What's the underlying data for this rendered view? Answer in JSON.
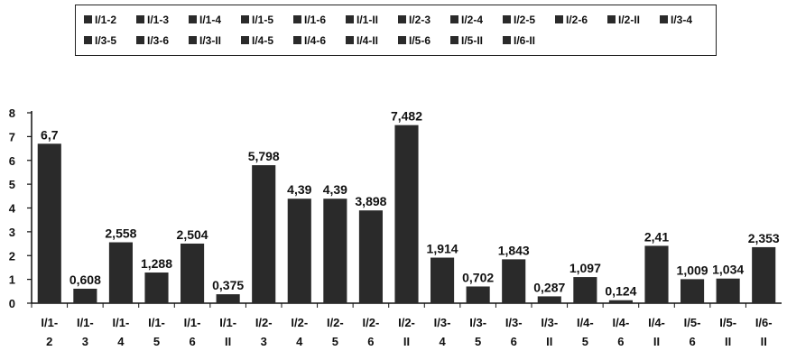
{
  "chart_data": {
    "type": "bar",
    "categories": [
      "I/1-2",
      "I/1-3",
      "I/1-4",
      "I/1-5",
      "I/1-6",
      "I/1-II",
      "I/2-3",
      "I/2-4",
      "I/2-5",
      "I/2-6",
      "I/2-II",
      "I/3-4",
      "I/3-5",
      "I/3-6",
      "I/3-II",
      "I/4-5",
      "I/4-6",
      "I/4-II",
      "I/5-6",
      "I/5-II",
      "I/6-II"
    ],
    "values": [
      6.7,
      0.608,
      2.558,
      1.288,
      2.504,
      0.375,
      5.798,
      4.39,
      4.39,
      3.898,
      7.482,
      1.914,
      0.702,
      1.843,
      0.287,
      1.097,
      0.124,
      2.41,
      1.009,
      1.034,
      2.353
    ],
    "value_labels": [
      "6,7",
      "0,608",
      "2,558",
      "1,288",
      "2,504",
      "0,375",
      "5,798",
      "4,39",
      "4,39",
      "3,898",
      "7,482",
      "1,914",
      "0,702",
      "1,843",
      "0,287",
      "1,097",
      "0,124",
      "2,41",
      "1,009",
      "1,034",
      "2,353"
    ],
    "category_labels": [
      [
        "I/1-",
        "2"
      ],
      [
        "I/1-",
        "3"
      ],
      [
        "I/1-",
        "4"
      ],
      [
        "I/1-",
        "5"
      ],
      [
        "I/1-",
        "6"
      ],
      [
        "I/1-",
        "II"
      ],
      [
        "I/2-",
        "3"
      ],
      [
        "I/2-",
        "4"
      ],
      [
        "I/2-",
        "5"
      ],
      [
        "I/2-",
        "6"
      ],
      [
        "I/2-",
        "II"
      ],
      [
        "I/3-",
        "4"
      ],
      [
        "I/3-",
        "5"
      ],
      [
        "I/3-",
        "6"
      ],
      [
        "I/3-",
        "II"
      ],
      [
        "I/4-",
        "5"
      ],
      [
        "I/4-",
        "6"
      ],
      [
        "I/4-",
        "II"
      ],
      [
        "I/5-",
        "6"
      ],
      [
        "I/5-",
        "II"
      ],
      [
        "I/6-",
        "II"
      ]
    ],
    "legend_entries": [
      "I/1-2",
      "I/1-3",
      "I/1-4",
      "I/1-5",
      "I/1-6",
      "I/1-II",
      "I/2-3",
      "I/2-4",
      "I/2-5",
      "I/2-6",
      "I/2-II",
      "I/3-4",
      "I/3-5",
      "I/3-6",
      "I/3-II",
      "I/4-5",
      "I/4-6",
      "I/4-II",
      "I/5-6",
      "I/5-II",
      "I/6-II"
    ],
    "legend_placement": "top",
    "y_ticks": [
      "0",
      "1",
      "2",
      "3",
      "4",
      "5",
      "6",
      "7",
      "8"
    ],
    "ylim": [
      0,
      8
    ],
    "grid": false,
    "bar_color": "#2a2a2a",
    "title": "",
    "xlabel": "",
    "ylabel": ""
  }
}
